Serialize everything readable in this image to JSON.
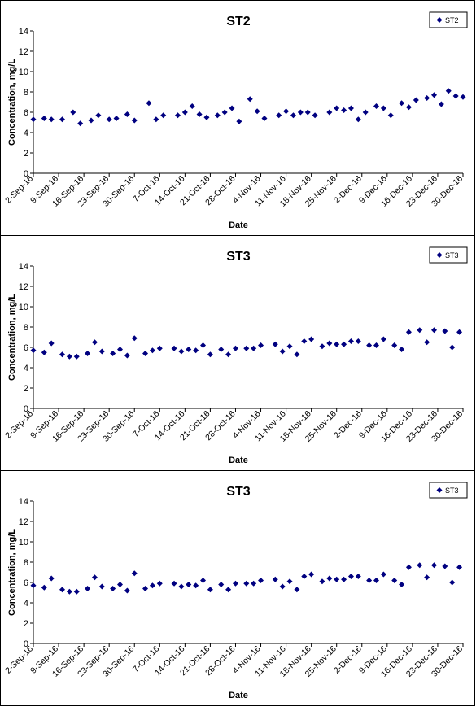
{
  "chart_data": [
    {
      "type": "scatter",
      "title": "ST2",
      "xlabel": "Date",
      "ylabel": "Concentration, mg/L",
      "ylim": [
        0,
        14
      ],
      "yticks": [
        0,
        2,
        4,
        6,
        8,
        10,
        12,
        14
      ],
      "xlim": [
        "2016-09-02",
        "2016-12-30"
      ],
      "xtick_labels": [
        "2-Sep-16",
        "9-Sep-16",
        "16-Sep-16",
        "23-Sep-16",
        "30-Sep-16",
        "7-Oct-16",
        "14-Oct-16",
        "21-Oct-16",
        "28-Oct-16",
        "4-Nov-16",
        "11-Nov-16",
        "18-Nov-16",
        "25-Nov-16",
        "2-Dec-16",
        "9-Dec-16",
        "16-Dec-16",
        "23-Dec-16",
        "30-Dec-16"
      ],
      "grid": false,
      "legend": "top-right",
      "marker_color": "#000080",
      "series": [
        {
          "name": "ST2",
          "x": [
            "2016-09-02",
            "2016-09-05",
            "2016-09-07",
            "2016-09-10",
            "2016-09-13",
            "2016-09-15",
            "2016-09-18",
            "2016-09-20",
            "2016-09-23",
            "2016-09-25",
            "2016-09-28",
            "2016-09-30",
            "2016-10-04",
            "2016-10-06",
            "2016-10-08",
            "2016-10-12",
            "2016-10-14",
            "2016-10-16",
            "2016-10-18",
            "2016-10-20",
            "2016-10-23",
            "2016-10-25",
            "2016-10-27",
            "2016-10-29",
            "2016-11-01",
            "2016-11-03",
            "2016-11-05",
            "2016-11-09",
            "2016-11-11",
            "2016-11-13",
            "2016-11-15",
            "2016-11-17",
            "2016-11-19",
            "2016-11-23",
            "2016-11-25",
            "2016-11-27",
            "2016-11-29",
            "2016-12-01",
            "2016-12-03",
            "2016-12-06",
            "2016-12-08",
            "2016-12-10",
            "2016-12-13",
            "2016-12-15",
            "2016-12-17",
            "2016-12-20",
            "2016-12-22",
            "2016-12-24",
            "2016-12-26",
            "2016-12-28",
            "2016-12-30"
          ],
          "values": [
            5.3,
            5.4,
            5.3,
            5.3,
            6.0,
            4.9,
            5.2,
            5.7,
            5.3,
            5.4,
            5.8,
            5.2,
            6.9,
            5.3,
            5.7,
            5.7,
            6.0,
            6.6,
            5.8,
            5.5,
            5.7,
            6.0,
            6.4,
            5.1,
            7.3,
            6.1,
            5.4,
            5.7,
            6.1,
            5.7,
            6.0,
            6.0,
            5.7,
            6.0,
            6.4,
            6.2,
            6.4,
            5.3,
            6.0,
            6.6,
            6.4,
            5.7,
            6.9,
            6.5,
            7.2,
            7.4,
            7.7,
            6.8,
            8.1,
            7.6,
            7.5
          ]
        }
      ]
    },
    {
      "type": "scatter",
      "title": "ST3",
      "xlabel": "Date",
      "ylabel": "Concentration, mg/L",
      "ylim": [
        0,
        14
      ],
      "yticks": [
        0,
        2,
        4,
        6,
        8,
        10,
        12,
        14
      ],
      "xlim": [
        "2016-09-02",
        "2016-12-30"
      ],
      "xtick_labels": [
        "2-Sep-16",
        "9-Sep-16",
        "16-Sep-16",
        "23-Sep-16",
        "30-Sep-16",
        "7-Oct-16",
        "14-Oct-16",
        "21-Oct-16",
        "28-Oct-16",
        "4-Nov-16",
        "11-Nov-16",
        "18-Nov-16",
        "25-Nov-16",
        "2-Dec-16",
        "9-Dec-16",
        "16-Dec-16",
        "23-Dec-16",
        "30-Dec-16"
      ],
      "grid": false,
      "legend": "top-right",
      "marker_color": "#000080",
      "series": [
        {
          "name": "ST3",
          "x": [
            "2016-09-02",
            "2016-09-05",
            "2016-09-07",
            "2016-09-10",
            "2016-09-12",
            "2016-09-14",
            "2016-09-17",
            "2016-09-19",
            "2016-09-21",
            "2016-09-24",
            "2016-09-26",
            "2016-09-28",
            "2016-09-30",
            "2016-10-03",
            "2016-10-05",
            "2016-10-07",
            "2016-10-11",
            "2016-10-13",
            "2016-10-15",
            "2016-10-17",
            "2016-10-19",
            "2016-10-21",
            "2016-10-24",
            "2016-10-26",
            "2016-10-28",
            "2016-10-31",
            "2016-11-02",
            "2016-11-04",
            "2016-11-08",
            "2016-11-10",
            "2016-11-12",
            "2016-11-14",
            "2016-11-16",
            "2016-11-18",
            "2016-11-21",
            "2016-11-23",
            "2016-11-25",
            "2016-11-27",
            "2016-11-29",
            "2016-12-01",
            "2016-12-04",
            "2016-12-06",
            "2016-12-08",
            "2016-12-11",
            "2016-12-13",
            "2016-12-15",
            "2016-12-18",
            "2016-12-20",
            "2016-12-22",
            "2016-12-25",
            "2016-12-27",
            "2016-12-29"
          ],
          "values": [
            5.7,
            5.5,
            6.4,
            5.3,
            5.1,
            5.1,
            5.4,
            6.5,
            5.6,
            5.4,
            5.8,
            5.2,
            6.9,
            5.4,
            5.7,
            5.9,
            5.9,
            5.6,
            5.8,
            5.7,
            6.2,
            5.3,
            5.8,
            5.3,
            5.9,
            5.9,
            5.9,
            6.2,
            6.3,
            5.6,
            6.1,
            5.3,
            6.6,
            6.8,
            6.1,
            6.4,
            6.3,
            6.3,
            6.6,
            6.6,
            6.2,
            6.2,
            6.8,
            6.2,
            5.8,
            7.5,
            7.7,
            6.5,
            7.7,
            7.6,
            6.0,
            7.5
          ]
        }
      ]
    },
    {
      "type": "scatter",
      "title": "ST3",
      "xlabel": "Date",
      "ylabel": "Concentration, mg/L",
      "ylim": [
        0,
        14
      ],
      "yticks": [
        0,
        2,
        4,
        6,
        8,
        10,
        12,
        14
      ],
      "xlim": [
        "2016-09-02",
        "2016-12-30"
      ],
      "xtick_labels": [
        "2-Sep-16",
        "9-Sep-16",
        "16-Sep-16",
        "23-Sep-16",
        "30-Sep-16",
        "7-Oct-16",
        "14-Oct-16",
        "21-Oct-16",
        "28-Oct-16",
        "4-Nov-16",
        "11-Nov-16",
        "18-Nov-16",
        "25-Nov-16",
        "2-Dec-16",
        "9-Dec-16",
        "16-Dec-16",
        "23-Dec-16",
        "30-Dec-16"
      ],
      "grid": false,
      "legend": "top-right",
      "marker_color": "#000080",
      "series": [
        {
          "name": "ST3",
          "x": [
            "2016-09-02",
            "2016-09-05",
            "2016-09-07",
            "2016-09-10",
            "2016-09-12",
            "2016-09-14",
            "2016-09-17",
            "2016-09-19",
            "2016-09-21",
            "2016-09-24",
            "2016-09-26",
            "2016-09-28",
            "2016-09-30",
            "2016-10-03",
            "2016-10-05",
            "2016-10-07",
            "2016-10-11",
            "2016-10-13",
            "2016-10-15",
            "2016-10-17",
            "2016-10-19",
            "2016-10-21",
            "2016-10-24",
            "2016-10-26",
            "2016-10-28",
            "2016-10-31",
            "2016-11-02",
            "2016-11-04",
            "2016-11-08",
            "2016-11-10",
            "2016-11-12",
            "2016-11-14",
            "2016-11-16",
            "2016-11-18",
            "2016-11-21",
            "2016-11-23",
            "2016-11-25",
            "2016-11-27",
            "2016-11-29",
            "2016-12-01",
            "2016-12-04",
            "2016-12-06",
            "2016-12-08",
            "2016-12-11",
            "2016-12-13",
            "2016-12-15",
            "2016-12-18",
            "2016-12-20",
            "2016-12-22",
            "2016-12-25",
            "2016-12-27",
            "2016-12-29"
          ],
          "values": [
            5.7,
            5.5,
            6.4,
            5.3,
            5.1,
            5.1,
            5.4,
            6.5,
            5.6,
            5.4,
            5.8,
            5.2,
            6.9,
            5.4,
            5.7,
            5.9,
            5.9,
            5.6,
            5.8,
            5.7,
            6.2,
            5.3,
            5.8,
            5.3,
            5.9,
            5.9,
            5.9,
            6.2,
            6.3,
            5.6,
            6.1,
            5.3,
            6.6,
            6.8,
            6.1,
            6.4,
            6.3,
            6.3,
            6.6,
            6.6,
            6.2,
            6.2,
            6.8,
            6.2,
            5.8,
            7.5,
            7.7,
            6.5,
            7.7,
            7.6,
            6.0,
            7.5
          ]
        }
      ]
    }
  ]
}
